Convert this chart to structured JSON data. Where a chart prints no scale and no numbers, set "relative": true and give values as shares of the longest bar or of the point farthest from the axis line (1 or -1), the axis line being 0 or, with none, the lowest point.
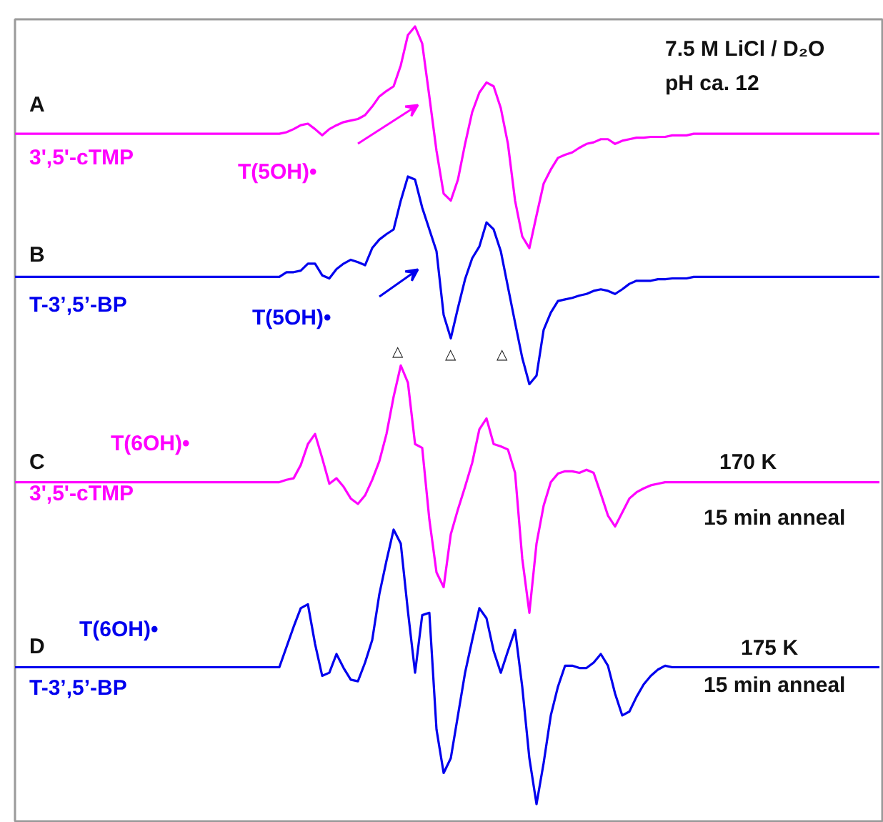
{
  "chart_data": {
    "type": "line",
    "relative": true,
    "categories": [
      null,
      null,
      null,
      null,
      null,
      null,
      null,
      null,
      null,
      null,
      null,
      null,
      null,
      null,
      null,
      null,
      null,
      null,
      null,
      null,
      null,
      null,
      null,
      null,
      null,
      null,
      null,
      null,
      null,
      null,
      null,
      null,
      null,
      null,
      null,
      null,
      null,
      null,
      null,
      null,
      null,
      null,
      null,
      null,
      null,
      null,
      null,
      null,
      null,
      null,
      null,
      null,
      null,
      null,
      null,
      null,
      null,
      null,
      null,
      null,
      null,
      null,
      null,
      null,
      null,
      null,
      null,
      null,
      null,
      null,
      null,
      null,
      null,
      null,
      null,
      null,
      null,
      null,
      null,
      null,
      null,
      null,
      null,
      null,
      null,
      null,
      null,
      null,
      null,
      null,
      null,
      null,
      null,
      null,
      null,
      null,
      null,
      null,
      null,
      null,
      null,
      null,
      null,
      null,
      null,
      null,
      null,
      null,
      null,
      null,
      null,
      null,
      null,
      null,
      null,
      null,
      null,
      null,
      null,
      null,
      null,
      null
    ],
    "series": [
      {
        "name": "3',5'-cTMP",
        "color": "#ff00ff",
        "values": [
          0.862,
          0.862,
          0.862,
          0.862,
          0.862,
          0.862,
          0.862,
          0.862,
          0.862,
          0.862,
          0.862,
          0.862,
          0.862,
          0.862,
          0.862,
          0.862,
          0.862,
          0.862,
          0.862,
          0.862,
          0.862,
          0.862,
          0.862,
          0.862,
          0.862,
          0.862,
          0.862,
          0.862,
          0.862,
          0.862,
          0.862,
          0.862,
          0.862,
          0.862,
          0.862,
          0.862,
          0.862,
          0.862,
          0.864,
          0.868,
          0.873,
          0.875,
          0.868,
          0.86,
          0.868,
          0.873,
          0.877,
          0.879,
          0.881,
          0.886,
          0.897,
          0.91,
          0.917,
          0.923,
          0.95,
          0.989,
          1.0,
          0.978,
          0.91,
          0.84,
          0.785,
          0.776,
          0.803,
          0.849,
          0.89,
          0.915,
          0.928,
          0.923,
          0.895,
          0.849,
          0.776,
          0.73,
          0.715,
          0.757,
          0.798,
          0.816,
          0.831,
          0.835,
          0.838,
          0.844,
          0.849,
          0.851,
          0.855,
          0.855,
          0.849,
          0.853,
          0.855,
          0.857,
          0.857,
          0.858,
          0.858,
          0.858,
          0.86,
          0.86,
          0.86,
          0.862,
          0.862,
          0.862,
          0.862,
          0.862,
          0.862,
          0.862,
          0.862,
          0.862,
          0.862,
          0.862,
          0.862,
          0.862,
          0.862,
          0.862,
          0.862,
          0.862,
          0.862,
          0.862,
          0.862,
          0.862,
          0.862,
          0.862,
          0.862,
          0.862,
          0.862,
          0.862
        ]
      },
      {
        "name": "T-3’,5’-BP",
        "color": "#0000ee",
        "values": [
          0.678,
          0.678,
          0.678,
          0.678,
          0.678,
          0.678,
          0.678,
          0.678,
          0.678,
          0.678,
          0.678,
          0.678,
          0.678,
          0.678,
          0.678,
          0.678,
          0.678,
          0.678,
          0.678,
          0.678,
          0.678,
          0.678,
          0.678,
          0.678,
          0.678,
          0.678,
          0.678,
          0.678,
          0.678,
          0.678,
          0.678,
          0.678,
          0.678,
          0.678,
          0.678,
          0.678,
          0.678,
          0.678,
          0.684,
          0.684,
          0.686,
          0.695,
          0.695,
          0.68,
          0.676,
          0.688,
          0.695,
          0.7,
          0.697,
          0.693,
          0.715,
          0.726,
          0.733,
          0.739,
          0.776,
          0.807,
          0.803,
          0.767,
          0.739,
          0.711,
          0.629,
          0.599,
          0.638,
          0.675,
          0.702,
          0.717,
          0.748,
          0.739,
          0.711,
          0.665,
          0.619,
          0.574,
          0.54,
          0.551,
          0.61,
          0.632,
          0.647,
          0.649,
          0.651,
          0.654,
          0.656,
          0.66,
          0.662,
          0.66,
          0.656,
          0.662,
          0.669,
          0.673,
          0.673,
          0.673,
          0.675,
          0.675,
          0.676,
          0.676,
          0.676,
          0.678,
          0.678,
          0.678,
          0.678,
          0.678,
          0.678,
          0.678,
          0.678,
          0.678,
          0.678,
          0.678,
          0.678,
          0.678,
          0.678,
          0.678,
          0.678,
          0.678,
          0.678,
          0.678,
          0.678,
          0.678,
          0.678,
          0.678,
          0.678,
          0.678,
          0.678,
          0.678
        ]
      },
      {
        "name": "3',5'-cTMP",
        "color": "#ff00ff",
        "values": [
          0.414,
          0.414,
          0.414,
          0.414,
          0.414,
          0.414,
          0.414,
          0.414,
          0.414,
          0.414,
          0.414,
          0.414,
          0.414,
          0.414,
          0.414,
          0.414,
          0.414,
          0.414,
          0.414,
          0.414,
          0.414,
          0.414,
          0.414,
          0.414,
          0.414,
          0.414,
          0.414,
          0.414,
          0.414,
          0.414,
          0.414,
          0.414,
          0.414,
          0.414,
          0.414,
          0.414,
          0.414,
          0.414,
          0.417,
          0.419,
          0.436,
          0.463,
          0.476,
          0.445,
          0.412,
          0.419,
          0.408,
          0.393,
          0.386,
          0.397,
          0.417,
          0.441,
          0.476,
          0.524,
          0.564,
          0.542,
          0.463,
          0.458,
          0.366,
          0.298,
          0.279,
          0.347,
          0.379,
          0.408,
          0.439,
          0.482,
          0.496,
          0.463,
          0.46,
          0.456,
          0.426,
          0.316,
          0.246,
          0.335,
          0.384,
          0.414,
          0.425,
          0.428,
          0.428,
          0.426,
          0.43,
          0.426,
          0.399,
          0.371,
          0.357,
          0.375,
          0.393,
          0.401,
          0.406,
          0.41,
          0.412,
          0.414,
          0.414,
          0.414,
          0.414,
          0.414,
          0.414,
          0.414,
          0.414,
          0.414,
          0.414,
          0.414,
          0.414,
          0.414,
          0.414,
          0.414,
          0.414,
          0.414,
          0.414,
          0.414,
          0.414,
          0.414,
          0.414,
          0.414,
          0.414,
          0.414,
          0.414,
          0.414,
          0.414,
          0.414,
          0.414,
          0.414
        ]
      },
      {
        "name": "T-3’,5’-BP",
        "color": "#0000ee",
        "values": [
          0.176,
          0.176,
          0.176,
          0.176,
          0.176,
          0.176,
          0.176,
          0.176,
          0.176,
          0.176,
          0.176,
          0.176,
          0.176,
          0.176,
          0.176,
          0.176,
          0.176,
          0.176,
          0.176,
          0.176,
          0.176,
          0.176,
          0.176,
          0.176,
          0.176,
          0.176,
          0.176,
          0.176,
          0.176,
          0.176,
          0.176,
          0.176,
          0.176,
          0.176,
          0.176,
          0.176,
          0.176,
          0.176,
          0.202,
          0.228,
          0.252,
          0.257,
          0.206,
          0.165,
          0.169,
          0.193,
          0.175,
          0.16,
          0.158,
          0.182,
          0.211,
          0.27,
          0.313,
          0.353,
          0.335,
          0.248,
          0.169,
          0.243,
          0.246,
          0.096,
          0.04,
          0.059,
          0.114,
          0.169,
          0.211,
          0.252,
          0.239,
          0.197,
          0.169,
          0.197,
          0.224,
          0.151,
          0.059,
          0,
          0.053,
          0.114,
          0.151,
          0.178,
          0.178,
          0.175,
          0.175,
          0.182,
          0.193,
          0.178,
          0.142,
          0.114,
          0.119,
          0.138,
          0.154,
          0.165,
          0.173,
          0.178,
          0.176,
          0.176,
          0.176,
          0.176,
          0.176,
          0.176,
          0.176,
          0.176,
          0.176,
          0.176,
          0.176,
          0.176,
          0.176,
          0.176,
          0.176,
          0.176,
          0.176,
          0.176,
          0.176,
          0.176,
          0.176,
          0.176,
          0.176,
          0.176,
          0.176,
          0.176,
          0.176,
          0.176,
          0.176,
          0.176
        ]
      }
    ],
    "annotations": [
      "A",
      "B",
      "C",
      "D",
      "T(5OH)•",
      "T(5OH)•",
      "T(6OH)•",
      "T(6OH)•",
      "7.5 M LiCl / D₂O",
      "pH ca. 12",
      "170 K",
      "15 min anneal",
      "175 K",
      "15 min anneal",
      "△",
      "△",
      "△"
    ]
  }
}
